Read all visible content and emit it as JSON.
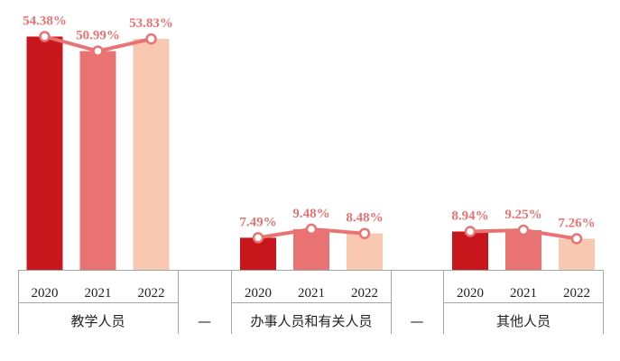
{
  "chart_data": {
    "type": "bar",
    "groups": [
      {
        "name": "教学人员",
        "separator_after": "—"
      },
      {
        "name": "办事人员和有关人员",
        "separator_after": "—"
      },
      {
        "name": "其他人员",
        "separator_after": ""
      }
    ],
    "series": [
      {
        "name": "2020",
        "color": "#c8171c",
        "values": [
          54.38,
          7.49,
          8.94
        ],
        "labels": [
          "54.38%",
          "7.49%",
          "8.94%"
        ]
      },
      {
        "name": "2021",
        "color": "#e97373",
        "values": [
          50.99,
          9.48,
          9.25
        ],
        "labels": [
          "50.99%",
          "9.48%",
          "9.25%"
        ]
      },
      {
        "name": "2022",
        "color": "#f8c8b0",
        "values": [
          53.83,
          8.48,
          7.26
        ],
        "labels": [
          "53.83%",
          "8.48%",
          "7.26%"
        ]
      }
    ],
    "line_color": "#e97373",
    "ylim": [
      0,
      60
    ],
    "grid": false
  }
}
